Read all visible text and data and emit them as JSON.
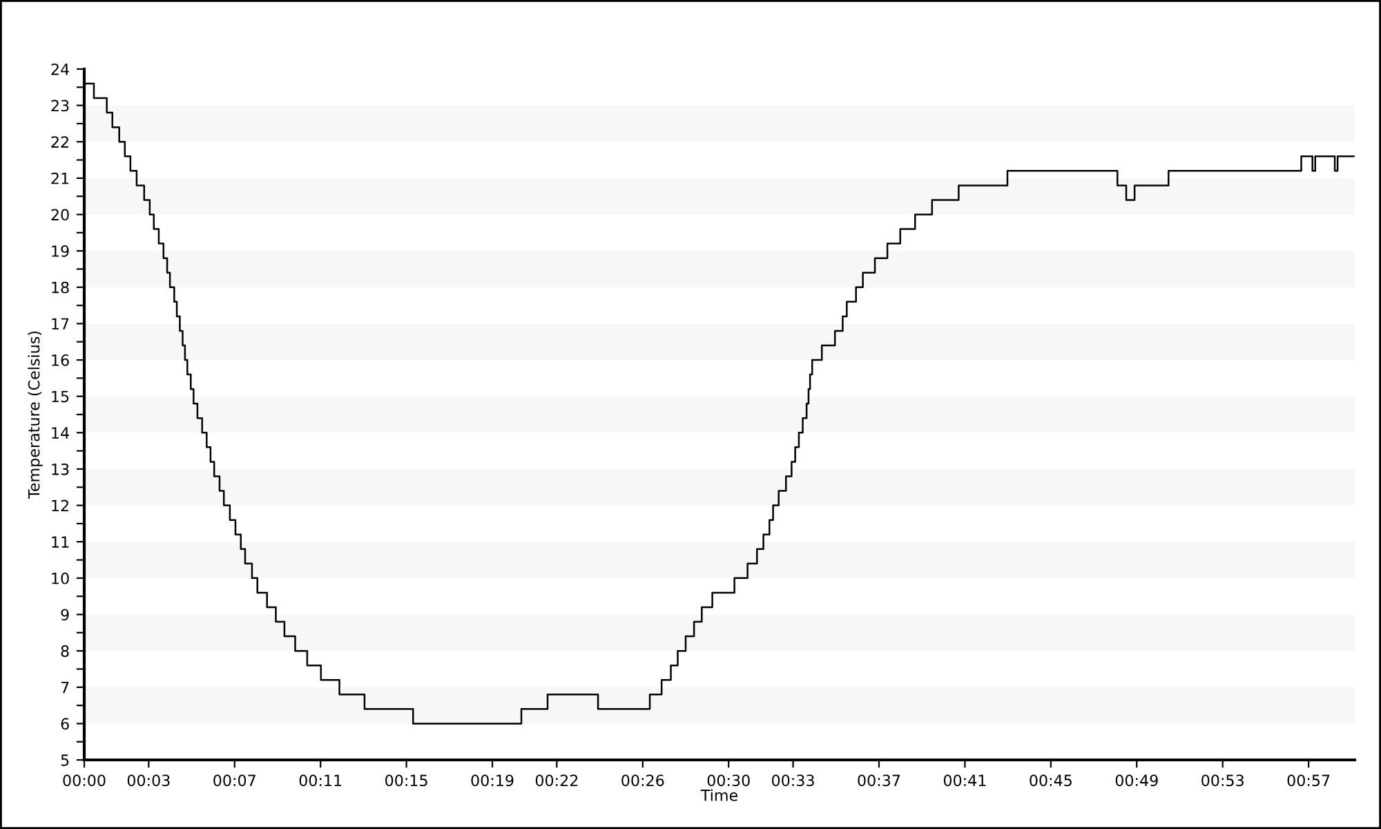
{
  "chart_data": {
    "type": "step",
    "xlabel": "Time",
    "ylabel": "Temperature (Celsius)",
    "series": [
      {
        "color": "#000000",
        "x": [
          0,
          0.45,
          1.05,
          1.31,
          1.63,
          1.89,
          2.15,
          2.44,
          2.79,
          3.05,
          3.24,
          3.47,
          3.69,
          3.86,
          3.99,
          4.19,
          4.31,
          4.45,
          4.58,
          4.69,
          4.8,
          4.96,
          5.09,
          5.27,
          5.49,
          5.7,
          5.88,
          6.05,
          6.3,
          6.5,
          6.78,
          7.04,
          7.29,
          7.49,
          7.81,
          8.06,
          8.51,
          8.92,
          9.32,
          9.82,
          10.38,
          11.02,
          11.88,
          13.05,
          15.31,
          20.35,
          21.57,
          23.92,
          26.33,
          26.88,
          27.31,
          27.63,
          28.0,
          28.39,
          28.75,
          29.24,
          30.27,
          30.88,
          31.32,
          31.62,
          31.9,
          32.07,
          32.33,
          32.67,
          32.93,
          33.1,
          33.27,
          33.45,
          33.63,
          33.72,
          33.79,
          33.89,
          34.34,
          34.95,
          35.31,
          35.5,
          35.93,
          36.25,
          36.81,
          37.39,
          37.99,
          38.68,
          39.47,
          40.71,
          42.98,
          48.1,
          48.51,
          48.9,
          50.48,
          56.66,
          57.18,
          57.31,
          58.22,
          58.35,
          59.1
        ],
        "values": [
          23.6,
          23.2,
          22.8,
          22.4,
          22.0,
          21.6,
          21.2,
          20.8,
          20.4,
          20.0,
          19.6,
          19.2,
          18.8,
          18.4,
          18.0,
          17.6,
          17.2,
          16.8,
          16.4,
          16.0,
          15.6,
          15.2,
          14.8,
          14.4,
          14.0,
          13.6,
          13.2,
          12.8,
          12.4,
          12.0,
          11.6,
          11.2,
          10.8,
          10.4,
          10.0,
          9.6,
          9.2,
          8.8,
          8.4,
          8.0,
          7.6,
          7.2,
          6.8,
          6.4,
          6.0,
          6.4,
          6.8,
          6.4,
          6.8,
          7.2,
          7.6,
          8.0,
          8.4,
          8.8,
          9.2,
          9.6,
          10.0,
          10.4,
          10.8,
          11.2,
          11.6,
          12.0,
          12.4,
          12.8,
          13.2,
          13.6,
          14.0,
          14.4,
          14.8,
          15.2,
          15.6,
          16.0,
          16.4,
          16.8,
          17.2,
          17.6,
          18.0,
          18.4,
          18.8,
          19.2,
          19.6,
          20.0,
          20.4,
          20.8,
          21.2,
          20.8,
          20.4,
          20.8,
          21.2,
          21.6,
          21.2,
          21.6,
          21.2,
          21.6,
          21.6
        ]
      }
    ],
    "xlim": [
      0,
      59.15
    ],
    "xticks": [
      {
        "value": 0,
        "label": "00:00"
      },
      {
        "value": 3,
        "label": "00:03"
      },
      {
        "value": 7,
        "label": "00:07"
      },
      {
        "value": 11,
        "label": "00:11"
      },
      {
        "value": 15,
        "label": "00:15"
      },
      {
        "value": 19,
        "label": "00:19"
      },
      {
        "value": 22,
        "label": "00:22"
      },
      {
        "value": 26,
        "label": "00:26"
      },
      {
        "value": 30,
        "label": "00:30"
      },
      {
        "value": 33,
        "label": "00:33"
      },
      {
        "value": 37,
        "label": "00:37"
      },
      {
        "value": 41,
        "label": "00:41"
      },
      {
        "value": 45,
        "label": "00:45"
      },
      {
        "value": 49,
        "label": "00:49"
      },
      {
        "value": 53,
        "label": "00:53"
      },
      {
        "value": 57,
        "label": "00:57"
      }
    ],
    "ylim": [
      5,
      24
    ],
    "yticks": [
      5,
      {
        "value": 5.5,
        "label": null
      },
      6,
      {
        "value": 6.5,
        "label": null
      },
      7,
      {
        "value": 7.5,
        "label": null
      },
      8,
      {
        "value": 8.5,
        "label": null
      },
      9,
      {
        "value": 9.5,
        "label": null
      },
      10,
      {
        "value": 10.5,
        "label": null
      },
      11,
      {
        "value": 11.5,
        "label": null
      },
      12,
      {
        "value": 12.5,
        "label": null
      },
      13,
      {
        "value": 13.5,
        "label": null
      },
      14,
      {
        "value": 14.5,
        "label": null
      },
      15,
      {
        "value": 15.5,
        "label": null
      },
      16,
      {
        "value": 16.5,
        "label": null
      },
      17,
      {
        "value": 17.5,
        "label": null
      },
      18,
      {
        "value": 18.5,
        "label": null
      },
      19,
      {
        "value": 19.5,
        "label": null
      },
      20,
      {
        "value": 20.5,
        "label": null
      },
      21,
      {
        "value": 21.5,
        "label": null
      },
      22,
      {
        "value": 22.5,
        "label": null
      },
      23,
      {
        "value": 23.5,
        "label": null
      },
      24
    ],
    "bands": [
      {
        "axis": "y",
        "from": 6,
        "to": 7,
        "color": "#f7f7f7"
      },
      {
        "axis": "y",
        "from": 8,
        "to": 9,
        "color": "#f7f7f7"
      },
      {
        "axis": "y",
        "from": 10,
        "to": 11,
        "color": "#f7f7f7"
      },
      {
        "axis": "y",
        "from": 12,
        "to": 13,
        "color": "#f7f7f7"
      },
      {
        "axis": "y",
        "from": 14,
        "to": 15,
        "color": "#f7f7f7"
      },
      {
        "axis": "y",
        "from": 16,
        "to": 17,
        "color": "#f7f7f7"
      },
      {
        "axis": "y",
        "from": 18,
        "to": 19,
        "color": "#f7f7f7"
      },
      {
        "axis": "y",
        "from": 20,
        "to": 21,
        "color": "#f7f7f7"
      },
      {
        "axis": "y",
        "from": 22,
        "to": 23,
        "color": "#f7f7f7"
      }
    ],
    "grid": false,
    "marker": "none",
    "line_style": "solid"
  }
}
